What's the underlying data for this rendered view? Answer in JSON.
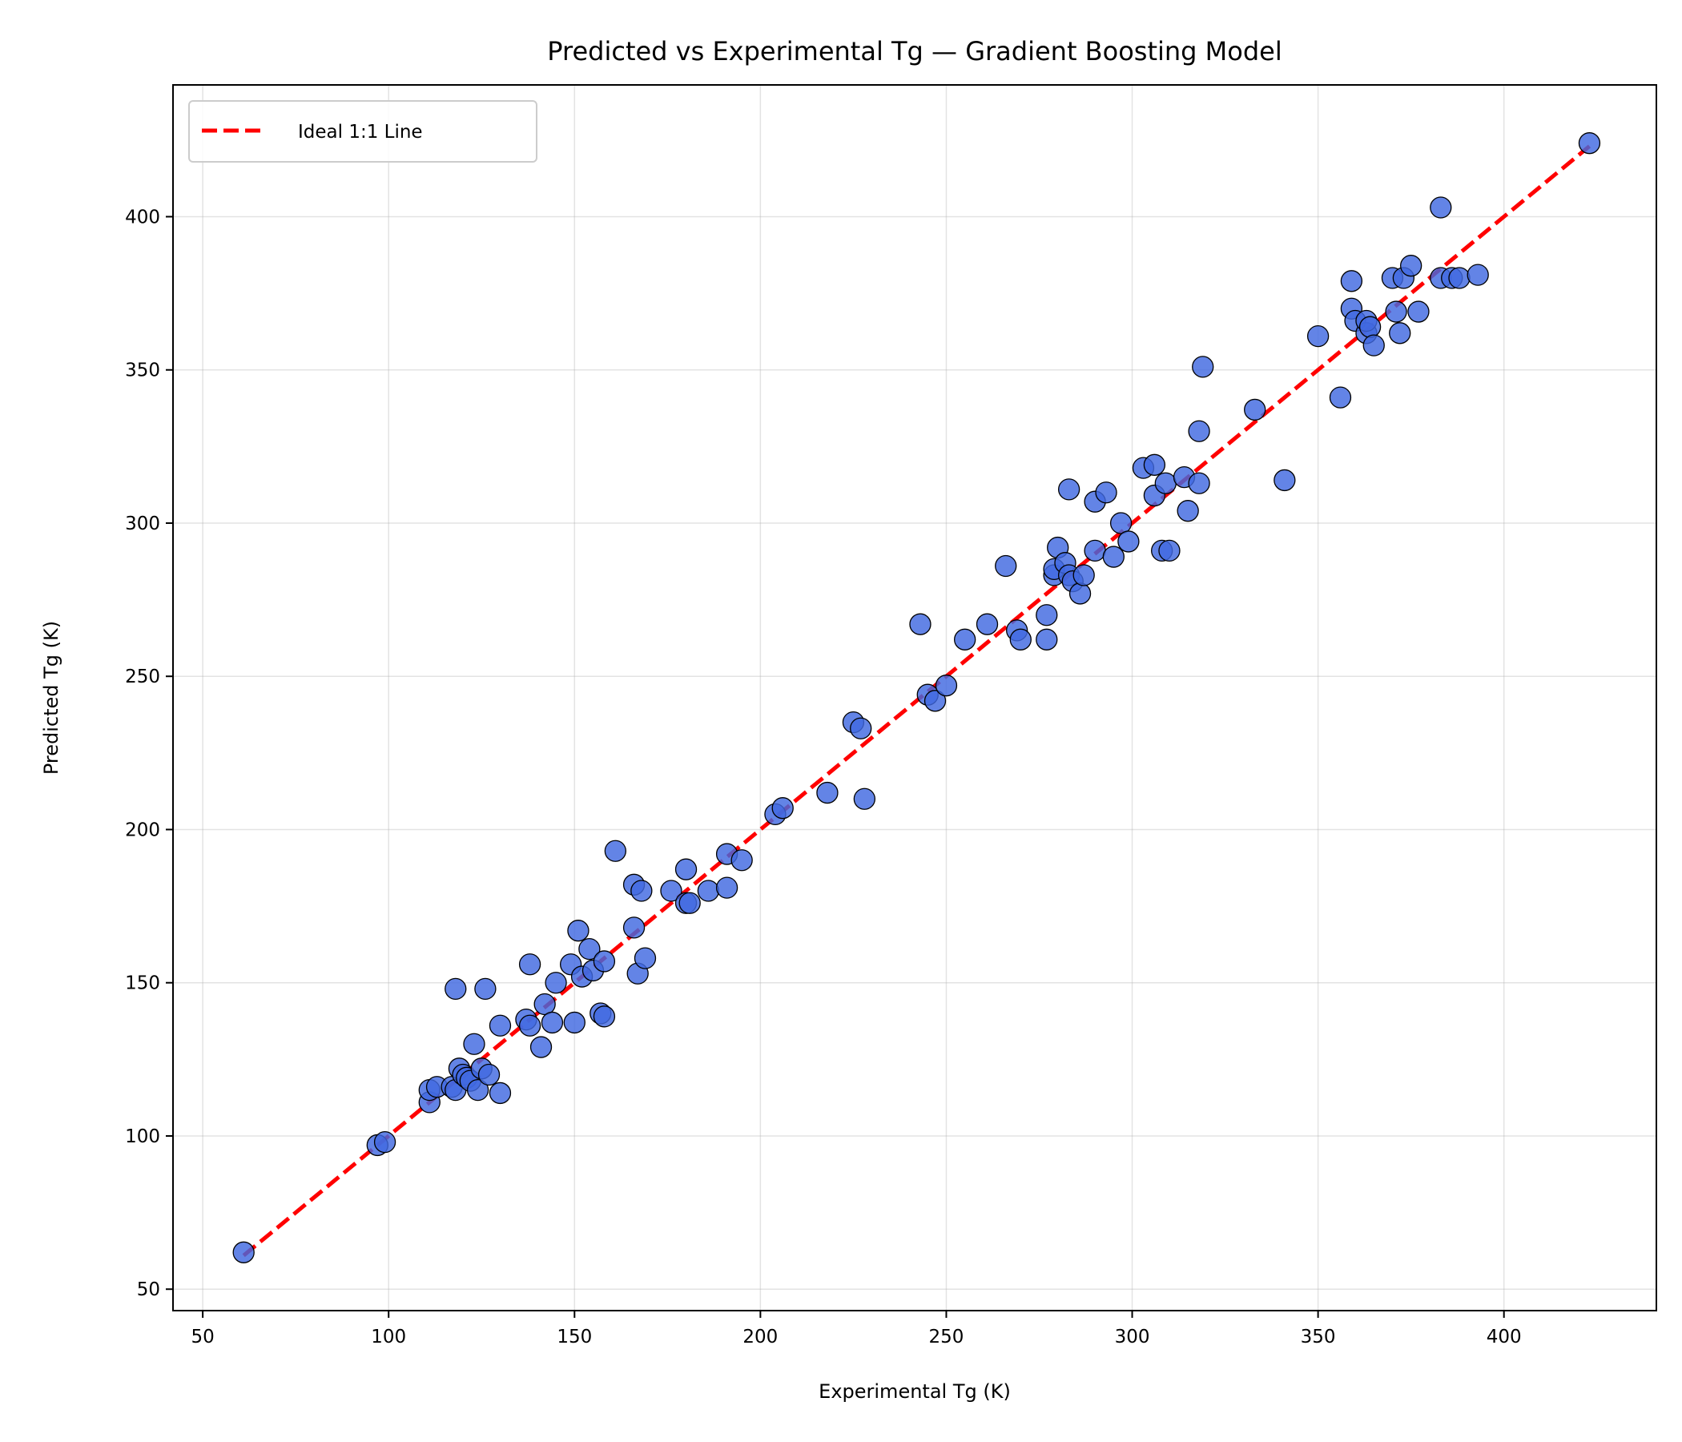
{
  "chart_data": {
    "type": "scatter",
    "title": "Predicted vs Experimental Tg — Gradient Boosting Model",
    "xlabel": "Experimental Tg (K)",
    "ylabel": "Predicted Tg (K)",
    "xlim": [
      42,
      441
    ],
    "ylim": [
      43,
      443
    ],
    "xticks": [
      50,
      100,
      150,
      200,
      250,
      300,
      350,
      400
    ],
    "yticks": [
      50,
      100,
      150,
      200,
      250,
      300,
      350,
      400
    ],
    "grid": true,
    "legend_position": "top-left",
    "colors": {
      "points": "#4169E1",
      "point_edge": "#000000",
      "ideal_line": "#FF0000"
    },
    "ideal_line": {
      "name": "Ideal 1:1 Line",
      "x": [
        61,
        423
      ],
      "y": [
        61,
        423
      ]
    },
    "points": [
      [
        61,
        62
      ],
      [
        97,
        97
      ],
      [
        99,
        98
      ],
      [
        111,
        111
      ],
      [
        111,
        115
      ],
      [
        113,
        116
      ],
      [
        117,
        116
      ],
      [
        118,
        115
      ],
      [
        118,
        148
      ],
      [
        119,
        122
      ],
      [
        120,
        120
      ],
      [
        121,
        119
      ],
      [
        122,
        118
      ],
      [
        123,
        130
      ],
      [
        124,
        115
      ],
      [
        125,
        122
      ],
      [
        126,
        148
      ],
      [
        127,
        120
      ],
      [
        130,
        114
      ],
      [
        130,
        136
      ],
      [
        137,
        138
      ],
      [
        138,
        136
      ],
      [
        138,
        156
      ],
      [
        141,
        129
      ],
      [
        142,
        143
      ],
      [
        144,
        137
      ],
      [
        145,
        150
      ],
      [
        149,
        156
      ],
      [
        150,
        137
      ],
      [
        151,
        167
      ],
      [
        152,
        152
      ],
      [
        154,
        161
      ],
      [
        155,
        154
      ],
      [
        157,
        140
      ],
      [
        158,
        139
      ],
      [
        158,
        157
      ],
      [
        161,
        193
      ],
      [
        166,
        168
      ],
      [
        166,
        182
      ],
      [
        167,
        153
      ],
      [
        168,
        180
      ],
      [
        169,
        158
      ],
      [
        176,
        180
      ],
      [
        180,
        187
      ],
      [
        180,
        176
      ],
      [
        181,
        176
      ],
      [
        186,
        180
      ],
      [
        191,
        192
      ],
      [
        191,
        181
      ],
      [
        195,
        190
      ],
      [
        204,
        205
      ],
      [
        206,
        207
      ],
      [
        218,
        212
      ],
      [
        225,
        235
      ],
      [
        227,
        233
      ],
      [
        228,
        210
      ],
      [
        243,
        267
      ],
      [
        245,
        244
      ],
      [
        247,
        242
      ],
      [
        250,
        247
      ],
      [
        255,
        262
      ],
      [
        261,
        267
      ],
      [
        266,
        286
      ],
      [
        269,
        265
      ],
      [
        270,
        262
      ],
      [
        277,
        270
      ],
      [
        277,
        262
      ],
      [
        279,
        283
      ],
      [
        279,
        285
      ],
      [
        280,
        292
      ],
      [
        282,
        287
      ],
      [
        283,
        311
      ],
      [
        283,
        283
      ],
      [
        284,
        281
      ],
      [
        286,
        277
      ],
      [
        287,
        283
      ],
      [
        290,
        307
      ],
      [
        290,
        291
      ],
      [
        293,
        310
      ],
      [
        295,
        289
      ],
      [
        297,
        300
      ],
      [
        299,
        294
      ],
      [
        303,
        318
      ],
      [
        306,
        309
      ],
      [
        306,
        319
      ],
      [
        308,
        291
      ],
      [
        309,
        313
      ],
      [
        310,
        291
      ],
      [
        314,
        315
      ],
      [
        315,
        304
      ],
      [
        318,
        330
      ],
      [
        318,
        313
      ],
      [
        319,
        351
      ],
      [
        333,
        337
      ],
      [
        341,
        314
      ],
      [
        350,
        361
      ],
      [
        356,
        341
      ],
      [
        359,
        379
      ],
      [
        359,
        370
      ],
      [
        360,
        366
      ],
      [
        363,
        362
      ],
      [
        363,
        366
      ],
      [
        364,
        364
      ],
      [
        365,
        358
      ],
      [
        370,
        380
      ],
      [
        371,
        369
      ],
      [
        372,
        362
      ],
      [
        373,
        380
      ],
      [
        375,
        384
      ],
      [
        377,
        369
      ],
      [
        383,
        380
      ],
      [
        383,
        403
      ],
      [
        386,
        380
      ],
      [
        388,
        380
      ],
      [
        393,
        381
      ],
      [
        423,
        424
      ]
    ]
  }
}
